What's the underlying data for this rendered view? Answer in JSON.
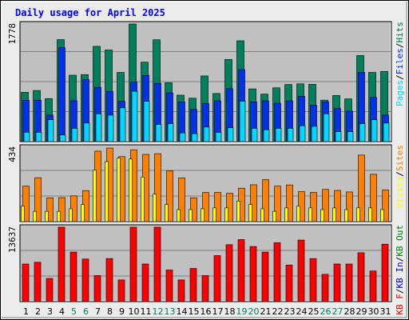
{
  "title": "Daily usage for April 2025",
  "colors": {
    "background": "#ececec",
    "plot_bg": "#c0c0c0",
    "title": "#0000ff",
    "pages": "#00d8ff",
    "files": "#0030e8",
    "hits": "#00805a",
    "visits": "#ffff00",
    "sites": "#ff8000",
    "kbin": "#008000",
    "kbout": "#0000c0",
    "kbf": "#ff0000",
    "weekend": "#008060",
    "weekday": "#000000"
  },
  "chart_data": [
    {
      "type": "bar",
      "panel": "hits-files-pages",
      "ymax_label": "1778",
      "ylim": [
        0,
        1778
      ],
      "categories": [
        "1",
        "2",
        "3",
        "4",
        "5",
        "6",
        "7",
        "8",
        "9",
        "10",
        "11",
        "12",
        "13",
        "14",
        "15",
        "16",
        "17",
        "18",
        "19",
        "20",
        "21",
        "22",
        "23",
        "24",
        "25",
        "26",
        "27",
        "28",
        "29",
        "30",
        "31"
      ],
      "legend": [
        {
          "label": "Pages",
          "color": "#00d8ff"
        },
        {
          "label": "/",
          "color": "#000000"
        },
        {
          "label": "Files",
          "color": "#0030e8"
        },
        {
          "label": "/",
          "color": "#000000"
        },
        {
          "label": "Hits",
          "color": "#00805a"
        }
      ],
      "series": [
        {
          "name": "Hits",
          "color": "#00805a",
          "values": [
            745,
            773,
            650,
            1542,
            1004,
            1013,
            1440,
            1386,
            1046,
            1778,
            1201,
            1540,
            890,
            702,
            656,
            993,
            727,
            1242,
            1524,
            797,
            718,
            813,
            863,
            873,
            866,
            627,
            697,
            646,
            1301,
            1046,
            1061
          ]
        },
        {
          "name": "Files",
          "color": "#0030e8",
          "values": [
            626,
            626,
            400,
            1420,
            618,
            937,
            820,
            760,
            608,
            900,
            1000,
            880,
            737,
            600,
            485,
            575,
            617,
            800,
            1088,
            600,
            617,
            580,
            617,
            685,
            550,
            600,
            500,
            460,
            1047,
            668,
            400
          ]
        },
        {
          "name": "Pages",
          "color": "#00d8ff",
          "values": [
            140,
            140,
            330,
            100,
            200,
            280,
            420,
            400,
            510,
            760,
            610,
            260,
            270,
            130,
            120,
            220,
            140,
            210,
            610,
            200,
            180,
            200,
            200,
            240,
            230,
            420,
            150,
            150,
            270,
            330,
            280
          ]
        }
      ]
    },
    {
      "type": "bar",
      "panel": "visits-sites",
      "ymax_label": "434",
      "ylim": [
        0,
        434
      ],
      "legend": [
        {
          "label": "Visits",
          "color": "#ffff00"
        },
        {
          "label": "/",
          "color": "#000000"
        },
        {
          "label": "Sites",
          "color": "#ff8000"
        }
      ],
      "series": [
        {
          "name": "Sites",
          "color": "#ff8000",
          "values": [
            207,
            256,
            139,
            140,
            150,
            181,
            411,
            429,
            379,
            419,
            392,
            396,
            297,
            255,
            139,
            170,
            170,
            165,
            195,
            215,
            245,
            207,
            214,
            175,
            170,
            188,
            182,
            173,
            388,
            276,
            184
          ]
        },
        {
          "name": "Visits",
          "color": "#ffff00",
          "values": [
            90,
            60,
            60,
            60,
            75,
            100,
            300,
            350,
            370,
            365,
            260,
            160,
            100,
            70,
            70,
            75,
            80,
            80,
            120,
            100,
            75,
            60,
            80,
            90,
            80,
            70,
            80,
            70,
            80,
            80,
            70
          ]
        }
      ]
    },
    {
      "type": "bar",
      "panel": "kbytes",
      "ymax_label": "13637",
      "ylim": [
        0,
        13637
      ],
      "legend": [
        {
          "label": "KB F",
          "color": "#ff0000"
        },
        {
          "label": "/",
          "color": "#000000"
        },
        {
          "label": "KB In",
          "color": "#0000c0"
        },
        {
          "label": "/",
          "color": "#000000"
        },
        {
          "label": "KB Out",
          "color": "#008000"
        }
      ],
      "series": [
        {
          "name": "KB F",
          "color": "#ff0000",
          "values": [
            6890,
            7210,
            4250,
            13637,
            9070,
            7800,
            4770,
            7890,
            3970,
            13637,
            6890,
            13637,
            5790,
            3970,
            6080,
            4770,
            8430,
            10430,
            11370,
            10100,
            9070,
            10790,
            6710,
            11280,
            7890,
            5000,
            6890,
            6890,
            8960,
            5610,
            10520
          ]
        }
      ]
    }
  ],
  "days": [
    {
      "label": "1",
      "weekend": false
    },
    {
      "label": "2",
      "weekend": false
    },
    {
      "label": "3",
      "weekend": false
    },
    {
      "label": "4",
      "weekend": false
    },
    {
      "label": "5",
      "weekend": true
    },
    {
      "label": "6",
      "weekend": true
    },
    {
      "label": "7",
      "weekend": false
    },
    {
      "label": "8",
      "weekend": false
    },
    {
      "label": "9",
      "weekend": false
    },
    {
      "label": "10",
      "weekend": false
    },
    {
      "label": "11",
      "weekend": false
    },
    {
      "label": "12",
      "weekend": true
    },
    {
      "label": "13",
      "weekend": true
    },
    {
      "label": "14",
      "weekend": false
    },
    {
      "label": "15",
      "weekend": false
    },
    {
      "label": "16",
      "weekend": false
    },
    {
      "label": "17",
      "weekend": false
    },
    {
      "label": "18",
      "weekend": false
    },
    {
      "label": "19",
      "weekend": true
    },
    {
      "label": "20",
      "weekend": true
    },
    {
      "label": "21",
      "weekend": false
    },
    {
      "label": "22",
      "weekend": false
    },
    {
      "label": "23",
      "weekend": false
    },
    {
      "label": "24",
      "weekend": false
    },
    {
      "label": "25",
      "weekend": false
    },
    {
      "label": "26",
      "weekend": true
    },
    {
      "label": "27",
      "weekend": true
    },
    {
      "label": "28",
      "weekend": false
    },
    {
      "label": "29",
      "weekend": false
    },
    {
      "label": "30",
      "weekend": false
    },
    {
      "label": "31",
      "weekend": false
    }
  ]
}
